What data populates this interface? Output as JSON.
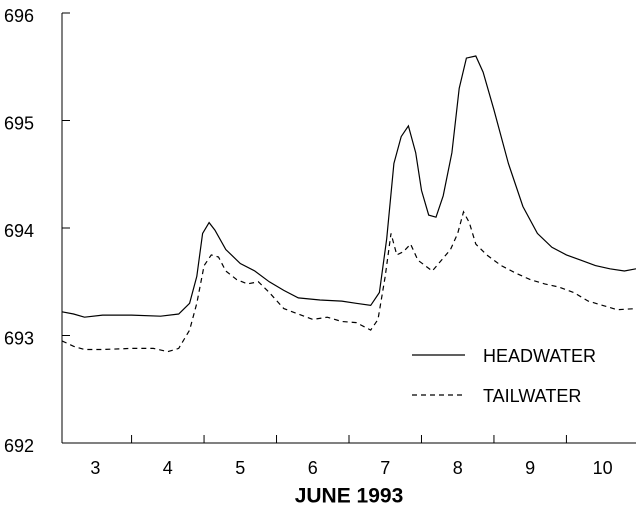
{
  "chart_data": {
    "type": "line",
    "x_label": "JUNE  1993",
    "xlim": [
      3.04,
      10.96
    ],
    "xticks": [
      {
        "value": 3.5,
        "label": "3"
      },
      {
        "value": 4.5,
        "label": "4"
      },
      {
        "value": 5.5,
        "label": "5"
      },
      {
        "value": 6.5,
        "label": "6"
      },
      {
        "value": 7.5,
        "label": "7"
      },
      {
        "value": 8.5,
        "label": "8"
      },
      {
        "value": 9.5,
        "label": "9"
      },
      {
        "value": 10.5,
        "label": "10"
      }
    ],
    "x_boundary_ticks": [
      4,
      5,
      6,
      7,
      8,
      9,
      10
    ],
    "ylim": [
      692,
      696
    ],
    "yticks": [
      692,
      693,
      694,
      695,
      696
    ],
    "series": [
      {
        "name": "HEADWATER",
        "color": "#000000",
        "dash": false,
        "x": [
          3.04,
          3.2,
          3.35,
          3.6,
          4.0,
          4.4,
          4.65,
          4.8,
          4.9,
          4.98,
          5.07,
          5.15,
          5.3,
          5.5,
          5.7,
          5.9,
          6.1,
          6.3,
          6.6,
          6.9,
          7.1,
          7.3,
          7.42,
          7.52,
          7.62,
          7.72,
          7.82,
          7.92,
          8.0,
          8.1,
          8.2,
          8.3,
          8.42,
          8.52,
          8.62,
          8.75,
          8.85,
          9.0,
          9.2,
          9.4,
          9.6,
          9.8,
          10.0,
          10.2,
          10.4,
          10.6,
          10.8,
          10.96
        ],
        "values": [
          693.22,
          693.2,
          693.17,
          693.19,
          693.19,
          693.18,
          693.2,
          693.3,
          693.55,
          693.95,
          694.05,
          693.98,
          693.8,
          693.67,
          693.6,
          693.5,
          693.42,
          693.35,
          693.33,
          693.32,
          693.3,
          693.28,
          693.4,
          693.9,
          694.6,
          694.85,
          694.95,
          694.7,
          694.35,
          694.12,
          694.1,
          694.3,
          694.7,
          695.3,
          695.58,
          695.6,
          695.45,
          695.1,
          694.6,
          694.2,
          693.95,
          693.82,
          693.75,
          693.7,
          693.65,
          693.62,
          693.6,
          693.62
        ]
      },
      {
        "name": "TAILWATER",
        "color": "#000000",
        "dash": true,
        "x": [
          3.04,
          3.2,
          3.35,
          3.6,
          4.0,
          4.3,
          4.5,
          4.65,
          4.8,
          4.9,
          5.0,
          5.1,
          5.2,
          5.3,
          5.45,
          5.6,
          5.75,
          5.9,
          6.1,
          6.3,
          6.5,
          6.7,
          6.9,
          7.1,
          7.3,
          7.4,
          7.5,
          7.58,
          7.66,
          7.75,
          7.85,
          7.95,
          8.05,
          8.15,
          8.25,
          8.4,
          8.5,
          8.58,
          8.66,
          8.75,
          8.9,
          9.1,
          9.3,
          9.5,
          9.7,
          9.9,
          10.1,
          10.3,
          10.5,
          10.7,
          10.96
        ],
        "values": [
          692.95,
          692.9,
          692.87,
          692.87,
          692.88,
          692.88,
          692.85,
          692.88,
          693.05,
          693.3,
          693.65,
          693.75,
          693.73,
          693.6,
          693.52,
          693.48,
          693.5,
          693.4,
          693.25,
          693.2,
          693.15,
          693.17,
          693.13,
          693.12,
          693.05,
          693.15,
          693.55,
          693.95,
          693.75,
          693.78,
          693.85,
          693.7,
          693.65,
          693.6,
          693.68,
          693.8,
          693.95,
          694.15,
          694.05,
          693.85,
          693.75,
          693.65,
          693.58,
          693.52,
          693.48,
          693.45,
          693.4,
          693.32,
          693.28,
          693.24,
          693.25
        ]
      }
    ]
  }
}
